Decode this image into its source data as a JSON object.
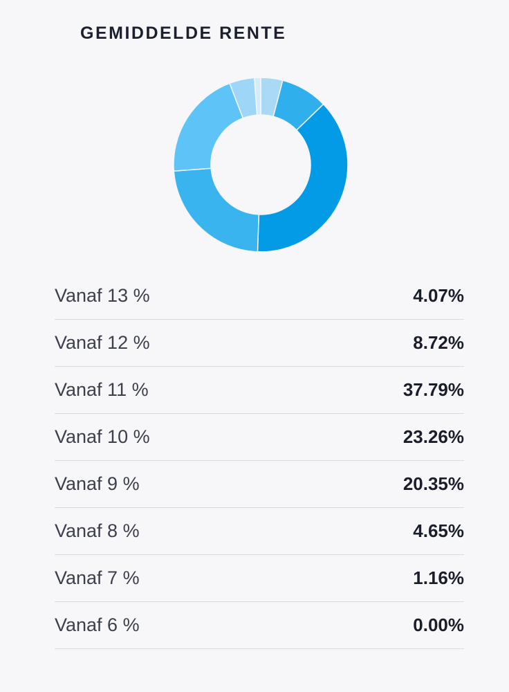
{
  "header": {
    "title": "GEMIDDELDE RENTE"
  },
  "chart_data": {
    "type": "pie",
    "categories": [
      "Vanaf 13 %",
      "Vanaf 12 %",
      "Vanaf 11 %",
      "Vanaf 10 %",
      "Vanaf 9 %",
      "Vanaf 8 %",
      "Vanaf 7 %",
      "Vanaf 6 %"
    ],
    "values": [
      4.07,
      8.72,
      37.79,
      23.26,
      20.35,
      4.65,
      1.16,
      0.0
    ],
    "value_labels": [
      "4.07%",
      "8.72%",
      "37.79%",
      "23.26%",
      "20.35%",
      "4.65%",
      "1.16%",
      "0.00%"
    ],
    "colors": [
      "#a9d9f5",
      "#2fb0ec",
      "#039be5",
      "#3ab4ee",
      "#5ec4f7",
      "#9dd6f6",
      "#d3ecfb",
      "#e9f6fd"
    ],
    "style": "donut"
  }
}
